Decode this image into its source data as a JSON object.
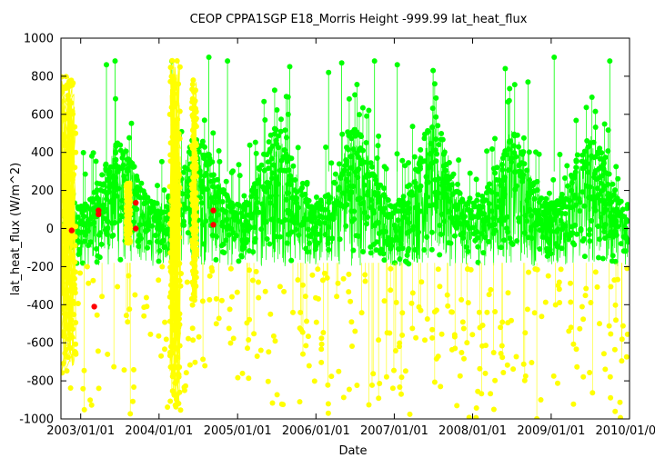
{
  "chart_data": {
    "type": "scatter",
    "title": "CEOP CPPA1SGP E18_Morris Height -999.99 lat_heat_flux",
    "xlabel": "Date",
    "ylabel": "lat_heat_flux (W/m^2)",
    "ylim": [
      -1000,
      1000
    ],
    "yticks": [
      -1000,
      -800,
      -600,
      -400,
      -200,
      0,
      200,
      400,
      600,
      800,
      1000
    ],
    "xlim": [
      "2002-10-01",
      "2010-01-01"
    ],
    "xticks": [
      "2003/01/01",
      "2004/01/01",
      "2005/01/01",
      "2006/01/01",
      "2007/01/01",
      "2008/01/01",
      "2009/01/01",
      "2010/01/01"
    ],
    "grid": false,
    "legend": "none",
    "series": [
      {
        "color": "#00ff00",
        "description": "lat_heat_flux values (green)",
        "start": "2002-10-15",
        "end": "2009-12-25",
        "y_range": [
          -200,
          900
        ],
        "seasonal_peaks": [
          {
            "x": "2003-07-01",
            "y": 460
          },
          {
            "x": "2004-07-01",
            "y": 480
          },
          {
            "x": "2005-07-01",
            "y": 540
          },
          {
            "x": "2006-07-01",
            "y": 520
          },
          {
            "x": "2007-07-01",
            "y": 560
          },
          {
            "x": "2008-07-01",
            "y": 520
          },
          {
            "x": "2009-07-01",
            "y": 500
          }
        ],
        "spikes": [
          {
            "x": "2003-05-01",
            "y": 860
          },
          {
            "x": "2003-06-10",
            "y": 880
          },
          {
            "x": "2004-03-01",
            "y": 880
          },
          {
            "x": "2004-08-20",
            "y": 900
          },
          {
            "x": "2004-11-15",
            "y": 880
          },
          {
            "x": "2005-09-01",
            "y": 850
          },
          {
            "x": "2006-03-01",
            "y": 820
          },
          {
            "x": "2006-05-01",
            "y": 870
          },
          {
            "x": "2006-10-01",
            "y": 880
          },
          {
            "x": "2007-01-15",
            "y": 860
          },
          {
            "x": "2007-07-01",
            "y": 830
          },
          {
            "x": "2008-06-01",
            "y": 840
          },
          {
            "x": "2008-09-15",
            "y": 770
          },
          {
            "x": "2009-01-15",
            "y": 900
          },
          {
            "x": "2009-10-01",
            "y": 880
          }
        ]
      },
      {
        "color": "#ffff00",
        "description": "flagged values (yellow)",
        "dense_bands": [
          {
            "x_start": "2002-10-01",
            "x_end": "2002-12-10",
            "y_range": [
              -760,
              800
            ]
          },
          {
            "x_start": "2003-08-01",
            "x_end": "2003-08-20",
            "y_range": [
              -80,
              240
            ]
          },
          {
            "x_start": "2004-02-20",
            "x_end": "2004-04-10",
            "y_range": [
              -950,
              900
            ]
          },
          {
            "x_start": "2004-06-01",
            "x_end": "2004-06-25",
            "y_range": [
              -400,
              780
            ]
          }
        ],
        "sparse_y_range": [
          -1000,
          -200
        ]
      },
      {
        "color": "#ff0000",
        "description": "red points",
        "points": [
          {
            "x": "2002-11-20",
            "y": -10
          },
          {
            "x": "2003-03-05",
            "y": -410
          },
          {
            "x": "2003-03-25",
            "y": 95
          },
          {
            "x": "2003-03-25",
            "y": 75
          },
          {
            "x": "2003-09-15",
            "y": 135
          },
          {
            "x": "2003-09-15",
            "y": 0
          },
          {
            "x": "2004-09-10",
            "y": 95
          },
          {
            "x": "2004-09-10",
            "y": 20
          }
        ]
      }
    ]
  }
}
